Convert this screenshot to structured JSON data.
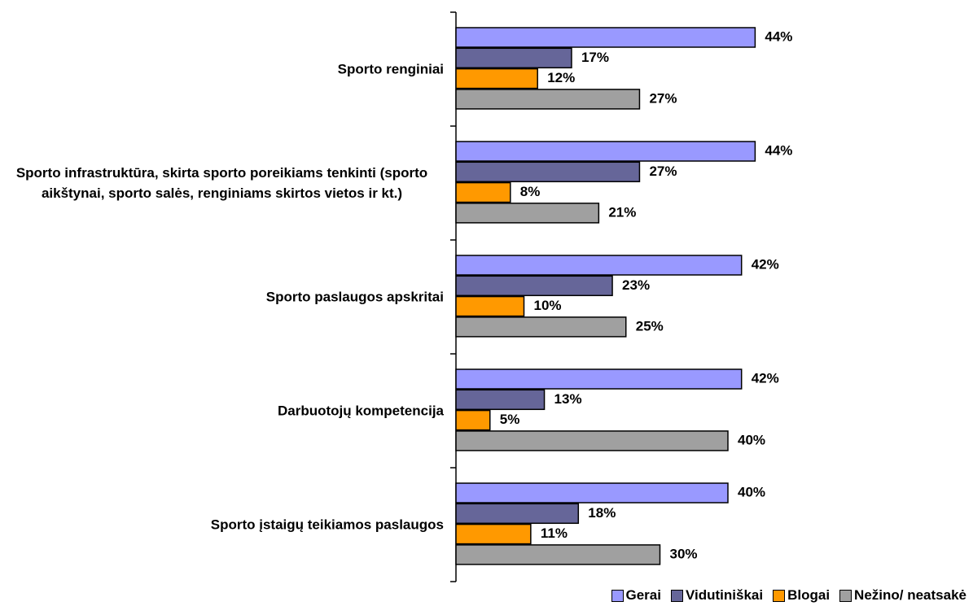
{
  "chart_data": {
    "type": "bar",
    "orientation": "horizontal",
    "categories": [
      "Sporto renginiai",
      "Sporto infrastruktūra, skirta sporto poreikiams tenkinti (sporto aikštynai, sporto salės, renginiams skirtos vietos ir kt.)",
      "Sporto paslaugos apskritai",
      "Darbuotojų kompetencija",
      "Sporto įstaigų teikiamos paslaugos"
    ],
    "series": [
      {
        "name": "Gerai",
        "color": "#9999ff",
        "values": [
          44,
          44,
          42,
          42,
          40
        ],
        "value_labels": [
          "44%",
          "44%",
          "42%",
          "42%",
          "40%"
        ]
      },
      {
        "name": "Vidutiniškai",
        "color": "#666699",
        "values": [
          17,
          27,
          23,
          13,
          18
        ],
        "value_labels": [
          "17%",
          "27%",
          "23%",
          "13%",
          "18%"
        ]
      },
      {
        "name": "Blogai",
        "color": "#ff9900",
        "values": [
          12,
          8,
          10,
          5,
          11
        ],
        "value_labels": [
          "12%",
          "8%",
          "10%",
          "5%",
          "11%"
        ]
      },
      {
        "name": "Nežino/ neatsakė",
        "color": "#a0a0a0",
        "values": [
          27,
          21,
          25,
          40,
          30
        ],
        "value_labels": [
          "27%",
          "21%",
          "25%",
          "40%",
          "30%"
        ]
      }
    ],
    "legend": "bottom-right"
  }
}
